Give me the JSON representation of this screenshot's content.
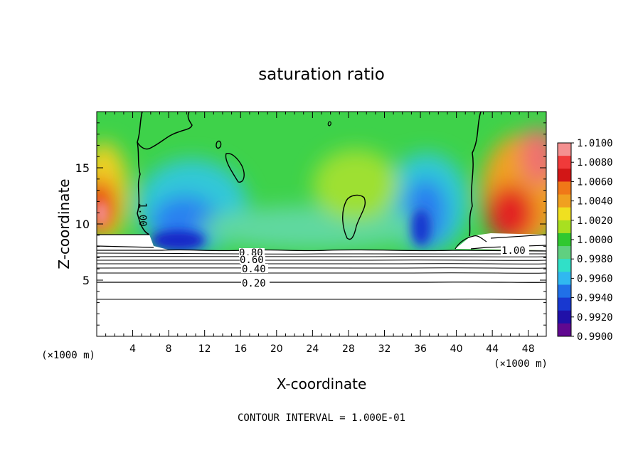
{
  "chart_data": {
    "type": "heatmap",
    "title": "saturation ratio",
    "xlabel": "X-coordinate",
    "ylabel": "Z-coordinate",
    "x_unit": "(×1000 m)",
    "z_unit": "(×1000 m)",
    "xlim": [
      0,
      50
    ],
    "ylim": [
      0,
      20
    ],
    "x_ticks": [
      "4",
      "8",
      "12",
      "16",
      "20",
      "24",
      "28",
      "32",
      "36",
      "40",
      "44",
      "48"
    ],
    "y_ticks": [
      "5",
      "10",
      "15"
    ],
    "colorbar": {
      "labels": [
        "1.0100",
        "1.0080",
        "1.0060",
        "1.0040",
        "1.0020",
        "1.0000",
        "0.9980",
        "0.9960",
        "0.9940",
        "0.9920",
        "0.9900"
      ],
      "colors": [
        "#f49090",
        "#f03a3a",
        "#d21616",
        "#f07818",
        "#f0a020",
        "#f0e020",
        "#a8e020",
        "#30c830",
        "#60d080",
        "#30e0c8",
        "#30b8f0",
        "#2070e8",
        "#1838d0",
        "#2010a8",
        "#600890"
      ],
      "min": 0.99,
      "max": 1.01
    },
    "contour_labels": [
      "1.00",
      "1.00",
      "0.80",
      "0.60",
      "0.40",
      "0.20"
    ],
    "contour_interval_text": "CONTOUR INTERVAL = 1.000E-01",
    "contour_levels_lower_layer": [
      0.1,
      0.2,
      0.3,
      0.4,
      0.5,
      0.6,
      0.7,
      0.8,
      0.9
    ]
  }
}
